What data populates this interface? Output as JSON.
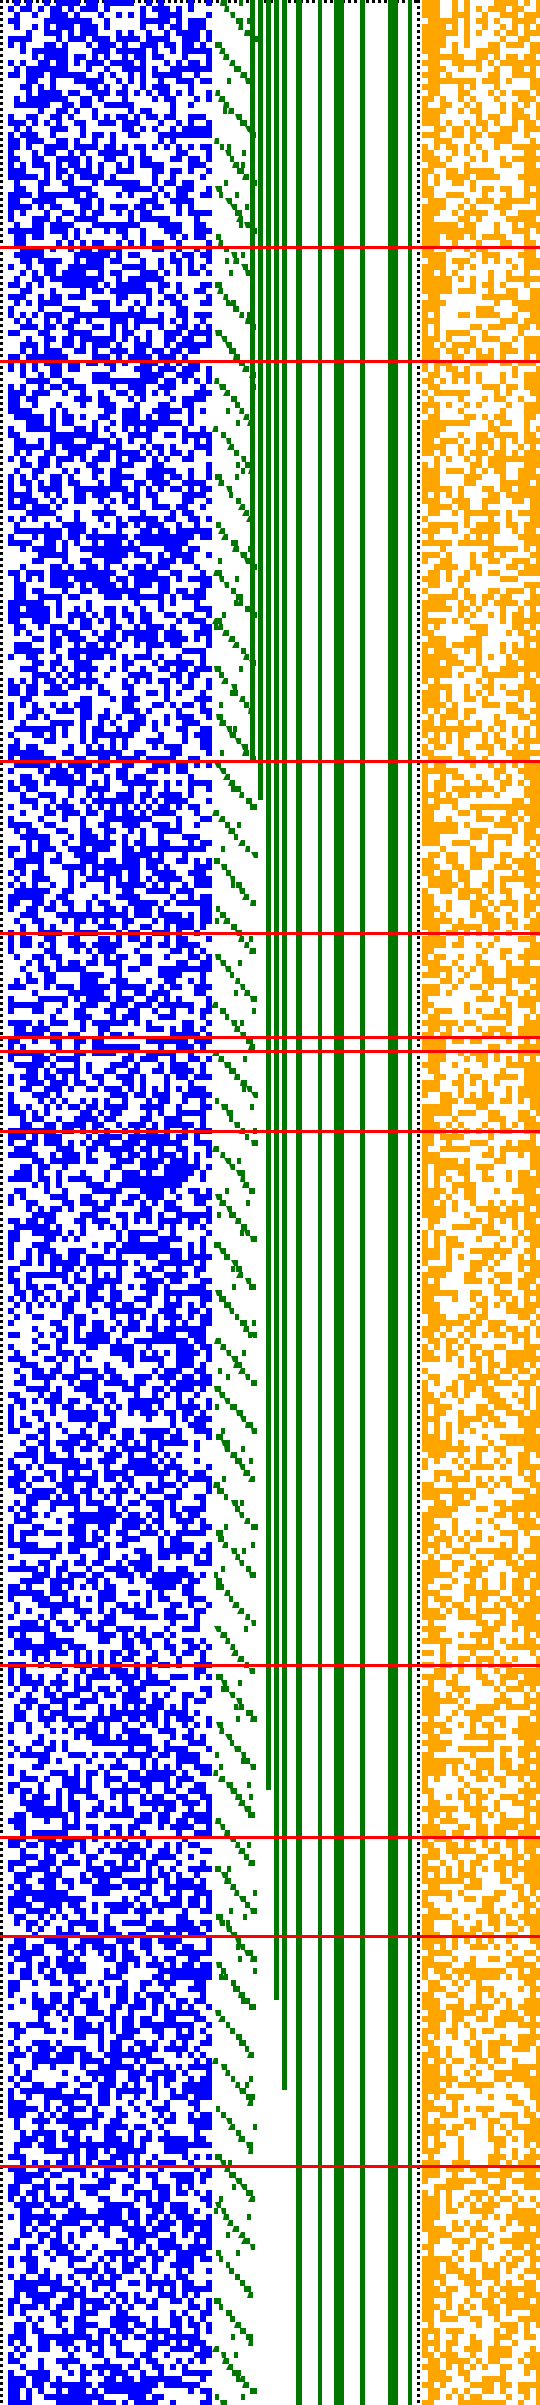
{
  "colors": {
    "background": "#ffffff",
    "dotted_border": "#000000",
    "blue_region": "#0000ff",
    "green_region": "#007700",
    "orange_region": "#ffa500",
    "red_lines": "#ff0000"
  },
  "regions": [
    "left-dotted-border",
    "blue-noise-field",
    "green-staircase-field",
    "green-vertical-bars",
    "center-dotted-divider",
    "orange-noise-field",
    "red-horizontal-lines"
  ]
}
